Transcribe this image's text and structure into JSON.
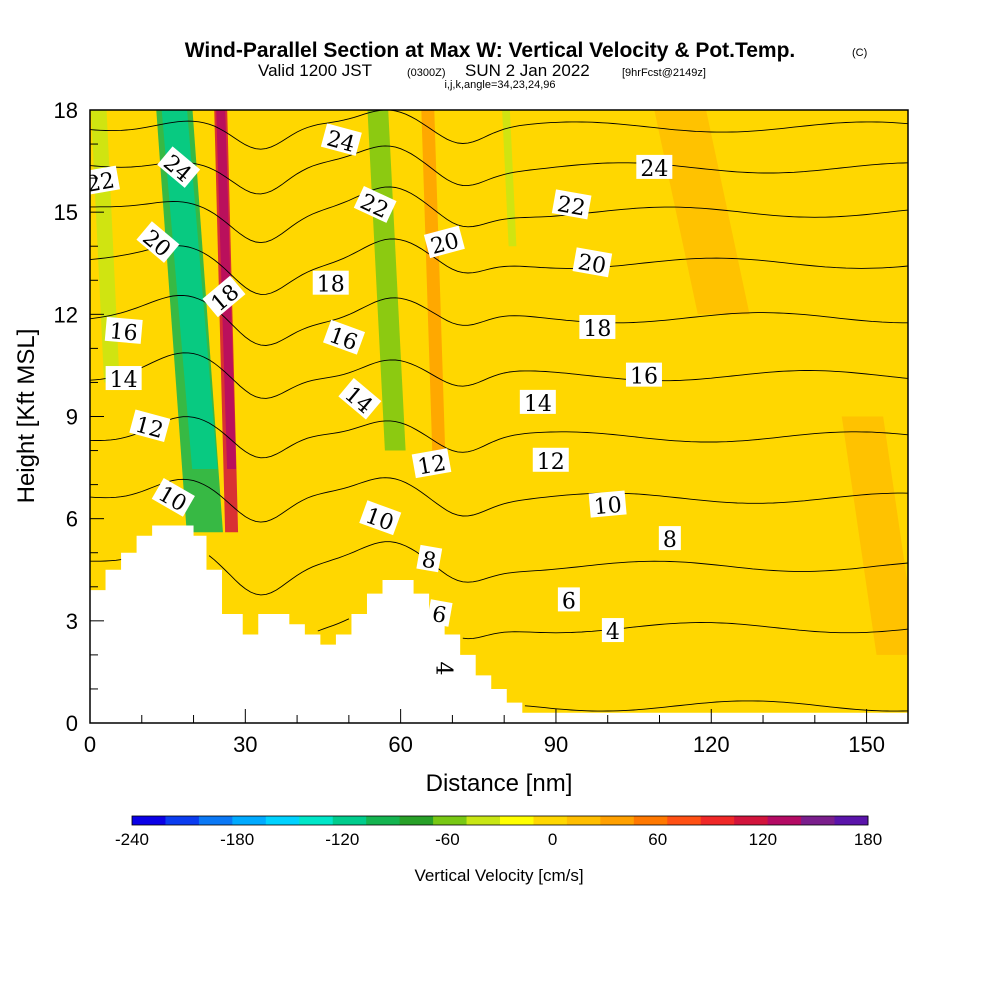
{
  "header": {
    "title": "Wind-Parallel Section at Max W: Vertical Velocity & Pot.Temp.",
    "title_mark": "(C)",
    "valid_a": "Valid 1200 JST",
    "valid_utc": "(0300Z)",
    "valid_b": "SUN 2 Jan 2022",
    "forecast": "[9hrFcst@2149z]",
    "params": "i,j,k,angle=34,23,24,96"
  },
  "colorbar": {
    "label": "Vertical Velocity [cm/s]",
    "levels": [
      -240,
      -220,
      -200,
      -180,
      -160,
      -140,
      -120,
      -100,
      -80,
      -60,
      -40,
      -20,
      0,
      20,
      40,
      60,
      80,
      100,
      120,
      140,
      160,
      180
    ],
    "colors": [
      "#0a00e6",
      "#0a3cf0",
      "#0a78f5",
      "#00aaff",
      "#00d2ff",
      "#00e6c8",
      "#00cc8c",
      "#14b450",
      "#28a028",
      "#78c814",
      "#c8e614",
      "#ffff00",
      "#ffd700",
      "#ffbe00",
      "#ffa000",
      "#ff7800",
      "#ff5014",
      "#f02828",
      "#d2143c",
      "#b40a64",
      "#7a1e8c",
      "#5a14aa"
    ],
    "tick_labels": [
      "-240",
      "-180",
      "-120",
      "-60",
      "0",
      "60",
      "120",
      "180"
    ]
  },
  "chart_data": {
    "type": "heatmap",
    "title": "Wind-Parallel Section at Max W: Vertical Velocity & Pot.Temp.",
    "xlabel": "Distance [nm]",
    "ylabel": "Height [Kft MSL]",
    "xlim": [
      0,
      158
    ],
    "ylim": [
      0,
      18
    ],
    "x_ticks": [
      0,
      30,
      60,
      90,
      120,
      150
    ],
    "y_ticks": [
      0,
      3,
      6,
      9,
      12,
      15,
      18
    ],
    "field": "Vertical Velocity [cm/s]",
    "background_w": 15,
    "w_bands": [
      {
        "x0": 2,
        "x1": 5,
        "ytop": 18,
        "ybot": 10,
        "w": -30
      },
      {
        "x0": 17,
        "x1": 24,
        "ytop": 18,
        "ybot": 5.6,
        "w": -100
      },
      {
        "x0": 25.5,
        "x1": 28,
        "ytop": 18,
        "ybot": 5.6,
        "w": 120
      },
      {
        "x0": 56,
        "x1": 60,
        "ytop": 18,
        "ybot": 8,
        "w": -60
      },
      {
        "x0": 65.5,
        "x1": 68,
        "ytop": 18,
        "ybot": 8,
        "w": 50
      },
      {
        "x0": 80.5,
        "x1": 82,
        "ytop": 18,
        "ybot": 14,
        "w": -40
      },
      {
        "x0": 115,
        "x1": 125,
        "ytop": 18,
        "ybot": 12,
        "w": 35
      },
      {
        "x0": 150,
        "x1": 158,
        "ytop": 9,
        "ybot": 2,
        "w": 35
      }
    ],
    "terrain": [
      [
        0,
        3.9
      ],
      [
        3,
        3.9
      ],
      [
        3,
        4.5
      ],
      [
        6,
        4.5
      ],
      [
        6,
        5.0
      ],
      [
        9,
        5.0
      ],
      [
        9,
        5.5
      ],
      [
        12,
        5.5
      ],
      [
        12,
        5.8
      ],
      [
        20,
        5.8
      ],
      [
        20,
        5.5
      ],
      [
        22.5,
        5.5
      ],
      [
        22.5,
        4.5
      ],
      [
        25.5,
        4.5
      ],
      [
        25.5,
        3.2
      ],
      [
        29.5,
        3.2
      ],
      [
        29.5,
        2.6
      ],
      [
        32.5,
        2.6
      ],
      [
        32.5,
        3.2
      ],
      [
        38.5,
        3.2
      ],
      [
        38.5,
        2.9
      ],
      [
        41.5,
        2.9
      ],
      [
        41.5,
        2.6
      ],
      [
        44.5,
        2.6
      ],
      [
        44.5,
        2.3
      ],
      [
        47.5,
        2.3
      ],
      [
        47.5,
        2.6
      ],
      [
        50.5,
        2.6
      ],
      [
        50.5,
        3.2
      ],
      [
        53.5,
        3.2
      ],
      [
        53.5,
        3.8
      ],
      [
        56.5,
        3.8
      ],
      [
        56.5,
        4.2
      ],
      [
        62.5,
        4.2
      ],
      [
        62.5,
        3.8
      ],
      [
        65.5,
        3.8
      ],
      [
        65.5,
        3.2
      ],
      [
        68.5,
        3.2
      ],
      [
        68.5,
        2.6
      ],
      [
        71.5,
        2.6
      ],
      [
        71.5,
        2.0
      ],
      [
        74.5,
        2.0
      ],
      [
        74.5,
        1.4
      ],
      [
        77.5,
        1.4
      ],
      [
        77.5,
        1.0
      ],
      [
        80.5,
        1.0
      ],
      [
        80.5,
        0.6
      ],
      [
        83.5,
        0.6
      ],
      [
        83.5,
        0.3
      ],
      [
        158,
        0.3
      ]
    ],
    "isentropes": {
      "label": "Pot.Temp.",
      "levels": [
        4,
        6,
        8,
        10,
        12,
        14,
        16,
        18,
        20,
        22,
        24
      ],
      "base_heights": [
        0.5,
        2.8,
        4.6,
        6.6,
        8.4,
        10.2,
        11.9,
        13.5,
        15.0,
        16.3,
        17.5
      ]
    },
    "contour_labels": [
      {
        "text": "22",
        "x": 2,
        "y": 15.9,
        "rot": -10
      },
      {
        "text": "24",
        "x": 17,
        "y": 16.3,
        "rot": 40
      },
      {
        "text": "20",
        "x": 13,
        "y": 14.1,
        "rot": 40
      },
      {
        "text": "18",
        "x": 26,
        "y": 12.5,
        "rot": -40
      },
      {
        "text": "16",
        "x": 6.5,
        "y": 11.5,
        "rot": 5
      },
      {
        "text": "14",
        "x": 6.5,
        "y": 10.1,
        "rot": 0
      },
      {
        "text": "12",
        "x": 11.5,
        "y": 8.7,
        "rot": 15
      },
      {
        "text": "10",
        "x": 16,
        "y": 6.6,
        "rot": 30
      },
      {
        "text": "24",
        "x": 48.5,
        "y": 17.1,
        "rot": 15
      },
      {
        "text": "22",
        "x": 55,
        "y": 15.2,
        "rot": 25
      },
      {
        "text": "18",
        "x": 46.5,
        "y": 12.9,
        "rot": 0
      },
      {
        "text": "16",
        "x": 49,
        "y": 11.3,
        "rot": 20
      },
      {
        "text": "14",
        "x": 52,
        "y": 9.5,
        "rot": 40
      },
      {
        "text": "10",
        "x": 56,
        "y": 6.0,
        "rot": 20
      },
      {
        "text": "20",
        "x": 68.5,
        "y": 14.1,
        "rot": -15
      },
      {
        "text": "12",
        "x": 66,
        "y": 7.6,
        "rot": -10
      },
      {
        "text": "8",
        "x": 65.5,
        "y": 4.8,
        "rot": 10
      },
      {
        "text": "6",
        "x": 67.5,
        "y": 3.2,
        "rot": 10
      },
      {
        "text": "4",
        "x": 68.5,
        "y": 1.6,
        "rot": 90
      },
      {
        "text": "22",
        "x": 93,
        "y": 15.2,
        "rot": 10
      },
      {
        "text": "20",
        "x": 97,
        "y": 13.5,
        "rot": 10
      },
      {
        "text": "18",
        "x": 98,
        "y": 11.6,
        "rot": 0
      },
      {
        "text": "14",
        "x": 86.5,
        "y": 9.4,
        "rot": 0
      },
      {
        "text": "12",
        "x": 89,
        "y": 7.7,
        "rot": 0
      },
      {
        "text": "10",
        "x": 100,
        "y": 6.4,
        "rot": -5
      },
      {
        "text": "6",
        "x": 92.5,
        "y": 3.6,
        "rot": 0
      },
      {
        "text": "4",
        "x": 101,
        "y": 2.7,
        "rot": 0
      },
      {
        "text": "16",
        "x": 107,
        "y": 10.2,
        "rot": 0
      },
      {
        "text": "8",
        "x": 112,
        "y": 5.4,
        "rot": 0
      },
      {
        "text": "24",
        "x": 109,
        "y": 16.3,
        "rot": 0
      }
    ]
  }
}
